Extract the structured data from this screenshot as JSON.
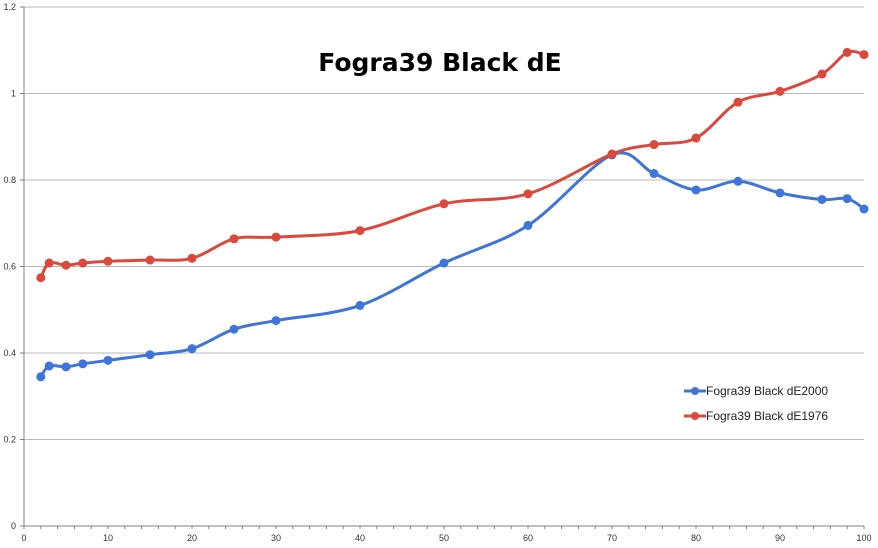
{
  "chart_data": {
    "type": "line",
    "title": "Fogra39 Black dE",
    "xlabel": "",
    "ylabel": "",
    "xlim": [
      0,
      100
    ],
    "ylim": [
      0,
      1.2
    ],
    "x_ticks": [
      "0",
      "10",
      "20",
      "30",
      "40",
      "50",
      "60",
      "70",
      "80",
      "90",
      "100"
    ],
    "y_ticks": [
      "0",
      "0.2",
      "0.4",
      "0.6",
      "0.8",
      "1",
      "1.2"
    ],
    "grid": "horizontal",
    "legend_position": "right",
    "series": [
      {
        "name": "Fogra39 Black dE2000",
        "color": "#3f74d9",
        "points": [
          [
            2,
            0.345
          ],
          [
            3,
            0.37
          ],
          [
            5,
            0.368
          ],
          [
            7,
            0.375
          ],
          [
            10,
            0.383
          ],
          [
            15,
            0.396
          ],
          [
            20,
            0.41
          ],
          [
            25,
            0.455
          ],
          [
            30,
            0.475
          ],
          [
            40,
            0.51
          ],
          [
            50,
            0.608
          ],
          [
            60,
            0.695
          ],
          [
            70,
            0.858
          ],
          [
            75,
            0.815
          ],
          [
            80,
            0.777
          ],
          [
            85,
            0.797
          ],
          [
            90,
            0.77
          ],
          [
            95,
            0.755
          ],
          [
            98,
            0.757
          ],
          [
            100,
            0.733
          ]
        ]
      },
      {
        "name": "Fogra39 Black dE1976",
        "color": "#d94a3c",
        "points": [
          [
            2,
            0.574
          ],
          [
            3,
            0.608
          ],
          [
            5,
            0.603
          ],
          [
            7,
            0.608
          ],
          [
            10,
            0.612
          ],
          [
            15,
            0.615
          ],
          [
            20,
            0.619
          ],
          [
            25,
            0.664
          ],
          [
            30,
            0.668
          ],
          [
            40,
            0.683
          ],
          [
            50,
            0.745
          ],
          [
            60,
            0.768
          ],
          [
            70,
            0.86
          ],
          [
            75,
            0.882
          ],
          [
            80,
            0.897
          ],
          [
            85,
            0.98
          ],
          [
            90,
            1.005
          ],
          [
            95,
            1.045
          ],
          [
            98,
            1.095
          ],
          [
            100,
            1.09
          ]
        ]
      }
    ]
  }
}
